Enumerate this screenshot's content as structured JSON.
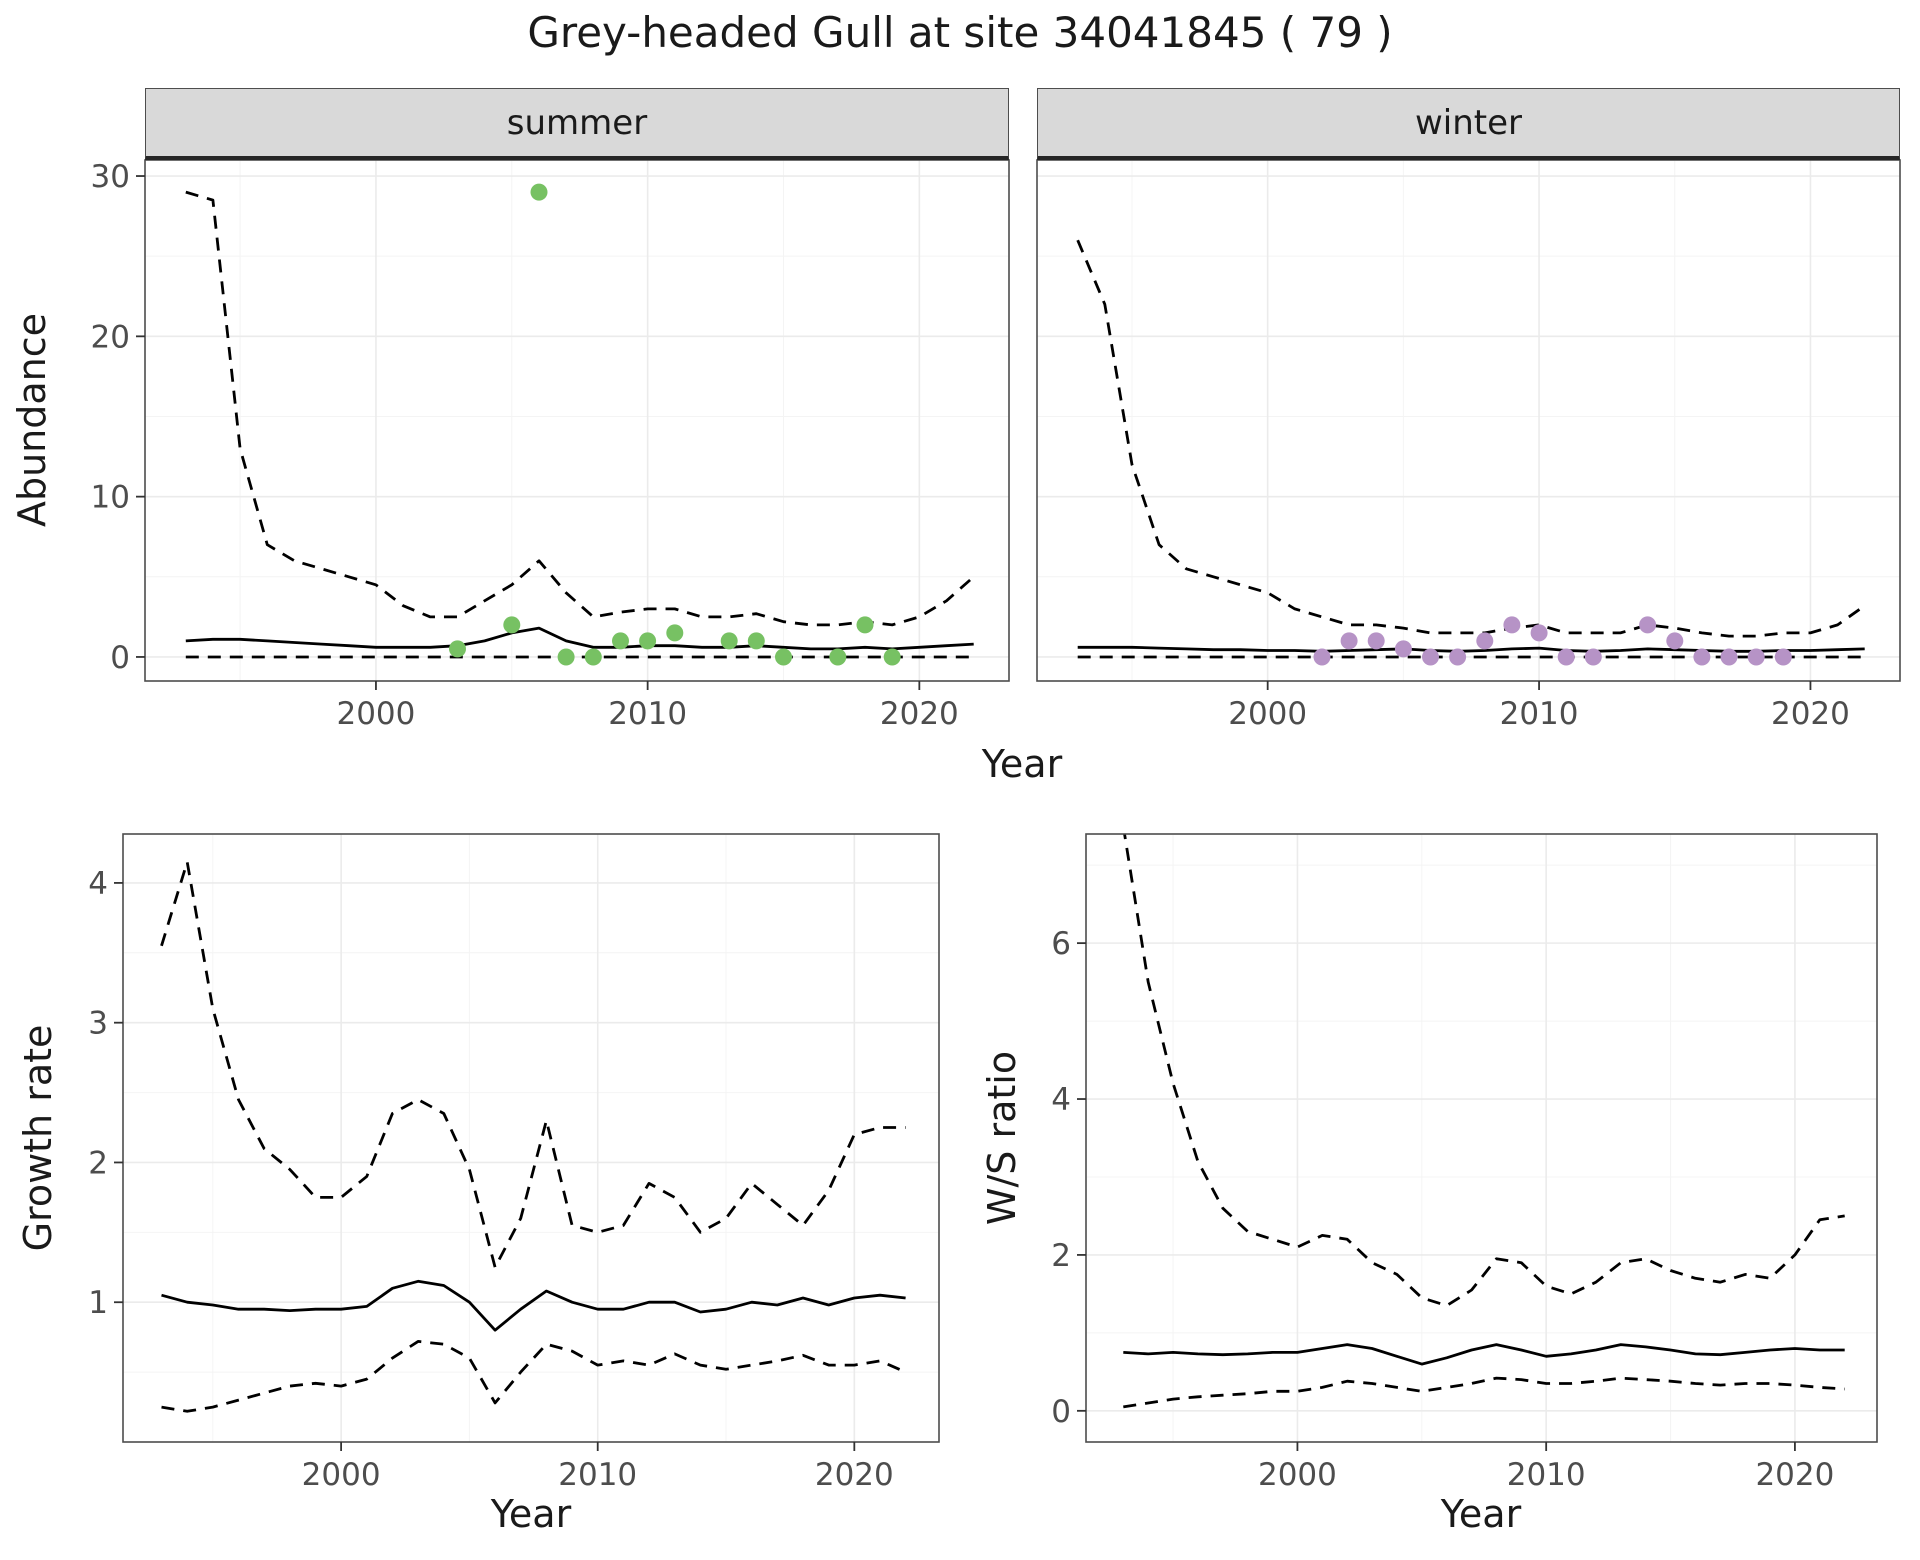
{
  "title": "Grey-headed Gull at site 34041845 ( 79 )",
  "facets": {
    "summer": "summer",
    "winter": "winter"
  },
  "axes": {
    "x_label": "Year",
    "abundance": "Abundance",
    "growth": "Growth rate",
    "ws": "W/S ratio"
  },
  "colors": {
    "summer_point": "#77c163",
    "winter_point": "#b693c6",
    "line": "#000000",
    "grid_major": "#ebebeb",
    "grid_minor": "#f4f4f4",
    "strip_bg": "#d9d9d9",
    "panel_border": "#4d4d4d",
    "tick_text": "#4d4d4d"
  },
  "years": [
    1993,
    1994,
    1995,
    1996,
    1997,
    1998,
    1999,
    2000,
    2001,
    2002,
    2003,
    2004,
    2005,
    2006,
    2007,
    2008,
    2009,
    2010,
    2011,
    2012,
    2013,
    2014,
    2015,
    2016,
    2017,
    2018,
    2019,
    2020,
    2021,
    2022
  ],
  "chart_data": [
    {
      "id": "summer-abundance",
      "type": "line",
      "facet": "summer",
      "title": "summer",
      "xlabel": "Year",
      "ylabel": "Abundance",
      "xlim": [
        1991.5,
        2023.3
      ],
      "ylim": [
        -1.5,
        31
      ],
      "x_ticks": {
        "major": [
          2000,
          2010,
          2020
        ],
        "minor": [
          1995,
          2005,
          2015
        ],
        "labels": [
          "2000",
          "2010",
          "2020"
        ]
      },
      "y_ticks": {
        "major": [
          0,
          10,
          20,
          30
        ],
        "minor": [
          5,
          15,
          25
        ],
        "labels": [
          "0",
          "10",
          "20",
          "30"
        ]
      },
      "series": [
        {
          "name": "upper-ci",
          "style": "dashed",
          "values": [
            29,
            28.5,
            13,
            7,
            6,
            5.5,
            5,
            4.5,
            3.2,
            2.5,
            2.5,
            3.5,
            4.5,
            6,
            4,
            2.5,
            2.8,
            3,
            3,
            2.5,
            2.5,
            2.7,
            2.2,
            2,
            2,
            2.2,
            2,
            2.5,
            3.5,
            5
          ]
        },
        {
          "name": "median",
          "style": "solid",
          "values": [
            1,
            1.1,
            1.1,
            1,
            0.9,
            0.8,
            0.7,
            0.6,
            0.6,
            0.6,
            0.7,
            1,
            1.5,
            1.8,
            1,
            0.6,
            0.6,
            0.7,
            0.7,
            0.6,
            0.6,
            0.7,
            0.6,
            0.5,
            0.5,
            0.6,
            0.5,
            0.6,
            0.7,
            0.8
          ]
        },
        {
          "name": "lower-ci",
          "style": "dashed",
          "values": [
            0,
            0,
            0,
            0,
            0,
            0,
            0,
            0,
            0,
            0,
            0,
            0,
            0,
            0,
            0,
            0,
            0,
            0,
            0,
            0,
            0,
            0,
            0,
            0,
            0,
            0,
            0,
            0,
            0,
            0
          ]
        }
      ],
      "observations": {
        "color_key": "summer_point",
        "x": [
          2003,
          2005,
          2006,
          2007,
          2008,
          2009,
          2010,
          2011,
          2013,
          2014,
          2015,
          2017,
          2018,
          2019
        ],
        "y": [
          0.5,
          2,
          29,
          0,
          0,
          1,
          1,
          1.5,
          1,
          1,
          0,
          0,
          2,
          0
        ]
      }
    },
    {
      "id": "winter-abundance",
      "type": "line",
      "facet": "winter",
      "title": "winter",
      "xlabel": "Year",
      "ylabel": "Abundance",
      "xlim": [
        1991.5,
        2023.3
      ],
      "ylim": [
        -1.5,
        31
      ],
      "x_ticks": {
        "major": [
          2000,
          2010,
          2020
        ],
        "minor": [
          1995,
          2005,
          2015
        ],
        "labels": [
          "2000",
          "2010",
          "2020"
        ]
      },
      "y_ticks": {
        "major": [
          0,
          10,
          20,
          30
        ],
        "minor": [
          5,
          15,
          25
        ],
        "labels": [
          "0",
          "10",
          "20",
          "30"
        ]
      },
      "series": [
        {
          "name": "upper-ci",
          "style": "dashed",
          "values": [
            26,
            22,
            12,
            7,
            5.5,
            5,
            4.5,
            4,
            3,
            2.5,
            2,
            2,
            1.8,
            1.5,
            1.5,
            1.5,
            1.8,
            2,
            1.5,
            1.5,
            1.5,
            2,
            1.8,
            1.5,
            1.3,
            1.3,
            1.5,
            1.5,
            2,
            3.2
          ]
        },
        {
          "name": "median",
          "style": "solid",
          "values": [
            0.6,
            0.6,
            0.6,
            0.55,
            0.5,
            0.45,
            0.45,
            0.4,
            0.4,
            0.35,
            0.4,
            0.45,
            0.5,
            0.4,
            0.35,
            0.4,
            0.5,
            0.55,
            0.4,
            0.35,
            0.4,
            0.5,
            0.45,
            0.4,
            0.35,
            0.35,
            0.4,
            0.4,
            0.45,
            0.5
          ]
        },
        {
          "name": "lower-ci",
          "style": "dashed",
          "values": [
            0,
            0,
            0,
            0,
            0,
            0,
            0,
            0,
            0,
            0,
            0,
            0,
            0,
            0,
            0,
            0,
            0,
            0,
            0,
            0,
            0,
            0,
            0,
            0,
            0,
            0,
            0,
            0,
            0,
            0
          ]
        }
      ],
      "observations": {
        "color_key": "winter_point",
        "x": [
          2002,
          2003,
          2004,
          2005,
          2006,
          2007,
          2008,
          2009,
          2010,
          2011,
          2012,
          2014,
          2015,
          2016,
          2017,
          2018,
          2019
        ],
        "y": [
          0,
          1,
          1,
          0.5,
          0,
          0,
          1,
          2,
          1.5,
          0,
          0,
          2,
          1,
          0,
          0,
          0,
          0
        ]
      }
    },
    {
      "id": "growth-rate",
      "type": "line",
      "facet": null,
      "title": "Growth rate",
      "xlabel": "Year",
      "ylabel": "Growth rate",
      "xlim": [
        1991.5,
        2023.3
      ],
      "ylim": [
        0,
        4.35
      ],
      "x_ticks": {
        "major": [
          2000,
          2010,
          2020
        ],
        "minor": [
          1995,
          2005,
          2015
        ],
        "labels": [
          "2000",
          "2010",
          "2020"
        ]
      },
      "y_ticks": {
        "major": [
          1,
          2,
          3,
          4
        ],
        "minor": [
          0.5,
          1.5,
          2.5,
          3.5
        ],
        "labels": [
          "1",
          "2",
          "3",
          "4"
        ]
      },
      "series": [
        {
          "name": "upper-ci",
          "style": "dashed",
          "values": [
            3.55,
            4.15,
            3.1,
            2.45,
            2.1,
            1.95,
            1.75,
            1.75,
            1.9,
            2.35,
            2.45,
            2.35,
            1.95,
            1.25,
            1.6,
            2.3,
            1.55,
            1.5,
            1.55,
            1.85,
            1.75,
            1.5,
            1.6,
            1.85,
            1.7,
            1.55,
            1.8,
            2.2,
            2.25,
            2.25
          ]
        },
        {
          "name": "median",
          "style": "solid",
          "values": [
            1.05,
            1.0,
            0.98,
            0.95,
            0.95,
            0.94,
            0.95,
            0.95,
            0.97,
            1.1,
            1.15,
            1.12,
            1.0,
            0.8,
            0.95,
            1.08,
            1.0,
            0.95,
            0.95,
            1.0,
            1.0,
            0.93,
            0.95,
            1.0,
            0.98,
            1.03,
            0.98,
            1.03,
            1.05,
            1.03
          ]
        },
        {
          "name": "lower-ci",
          "style": "dashed",
          "values": [
            0.25,
            0.22,
            0.25,
            0.3,
            0.35,
            0.4,
            0.42,
            0.4,
            0.45,
            0.6,
            0.72,
            0.7,
            0.6,
            0.28,
            0.5,
            0.7,
            0.65,
            0.55,
            0.58,
            0.55,
            0.63,
            0.55,
            0.52,
            0.55,
            0.58,
            0.62,
            0.55,
            0.55,
            0.58,
            0.5
          ]
        }
      ],
      "observations": null
    },
    {
      "id": "ws-ratio",
      "type": "line",
      "facet": null,
      "title": "W/S ratio",
      "xlabel": "Year",
      "ylabel": "W/S ratio",
      "xlim": [
        1991.5,
        2023.3
      ],
      "ylim": [
        -0.4,
        7.4
      ],
      "x_ticks": {
        "major": [
          2000,
          2010,
          2020
        ],
        "minor": [
          1995,
          2005,
          2015
        ],
        "labels": [
          "2000",
          "2010",
          "2020"
        ]
      },
      "y_ticks": {
        "major": [
          0,
          2,
          4,
          6
        ],
        "minor": [
          1,
          3,
          5,
          7
        ],
        "labels": [
          "0",
          "2",
          "4",
          "6"
        ]
      },
      "series": [
        {
          "name": "upper-ci",
          "style": "dashed",
          "values": [
            7.5,
            5.5,
            4.2,
            3.2,
            2.6,
            2.3,
            2.2,
            2.1,
            2.25,
            2.2,
            1.9,
            1.75,
            1.45,
            1.35,
            1.55,
            1.95,
            1.9,
            1.6,
            1.5,
            1.65,
            1.9,
            1.95,
            1.8,
            1.7,
            1.65,
            1.75,
            1.7,
            2.0,
            2.45,
            2.5
          ]
        },
        {
          "name": "median",
          "style": "solid",
          "values": [
            0.75,
            0.73,
            0.75,
            0.73,
            0.72,
            0.73,
            0.75,
            0.75,
            0.8,
            0.85,
            0.8,
            0.7,
            0.6,
            0.68,
            0.78,
            0.85,
            0.78,
            0.7,
            0.73,
            0.78,
            0.85,
            0.82,
            0.78,
            0.73,
            0.72,
            0.75,
            0.78,
            0.8,
            0.78,
            0.78
          ]
        },
        {
          "name": "lower-ci",
          "style": "dashed",
          "values": [
            0.05,
            0.1,
            0.15,
            0.18,
            0.2,
            0.22,
            0.25,
            0.25,
            0.3,
            0.38,
            0.35,
            0.3,
            0.25,
            0.3,
            0.35,
            0.42,
            0.4,
            0.35,
            0.35,
            0.38,
            0.42,
            0.4,
            0.38,
            0.35,
            0.33,
            0.35,
            0.35,
            0.33,
            0.3,
            0.28
          ]
        }
      ],
      "observations": null
    }
  ]
}
